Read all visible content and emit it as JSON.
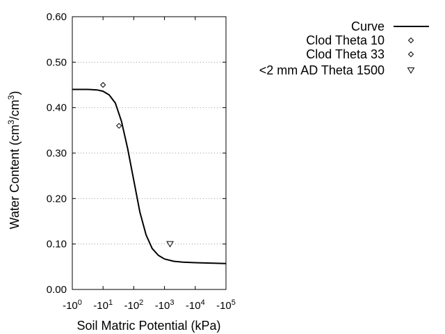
{
  "chart_data": {
    "type": "line",
    "xlabel": "Soil Matric Potential (kPa)",
    "ylabel": {
      "base": "Water Content (cm",
      "sup1": "3",
      "mid": "/cm",
      "sup2": "3",
      "end": ")"
    },
    "x_scale": "log",
    "x_exponents": [
      0,
      1,
      2,
      3,
      4,
      5
    ],
    "x_tick_prefix": "-10",
    "xlim_exponent": [
      0,
      5
    ],
    "ylim": [
      0,
      0.6
    ],
    "y_ticks": [
      "0.00",
      "0.10",
      "0.20",
      "0.30",
      "0.40",
      "0.50",
      "0.60"
    ],
    "grid": "horizontal dotted",
    "legend_position": "top-right",
    "series": [
      {
        "name": "Curve",
        "kind": "line",
        "color": "#000000",
        "points": [
          [
            0.0,
            0.44
          ],
          [
            0.5,
            0.44
          ],
          [
            0.8,
            0.439
          ],
          [
            1.0,
            0.436
          ],
          [
            1.2,
            0.428
          ],
          [
            1.4,
            0.41
          ],
          [
            1.6,
            0.37
          ],
          [
            1.8,
            0.31
          ],
          [
            2.0,
            0.24
          ],
          [
            2.2,
            0.17
          ],
          [
            2.4,
            0.12
          ],
          [
            2.6,
            0.09
          ],
          [
            2.8,
            0.075
          ],
          [
            3.0,
            0.067
          ],
          [
            3.3,
            0.062
          ],
          [
            3.6,
            0.06
          ],
          [
            4.0,
            0.059
          ],
          [
            4.5,
            0.058
          ],
          [
            5.0,
            0.057
          ]
        ]
      },
      {
        "name": "Clod Theta 10",
        "kind": "diamond",
        "points": [
          [
            1.0,
            0.45
          ]
        ]
      },
      {
        "name": "Clod Theta 33",
        "kind": "diamond",
        "points": [
          [
            1.52,
            0.36
          ]
        ]
      },
      {
        "name": "<2 mm AD Theta 1500",
        "kind": "triangle",
        "points": [
          [
            3.18,
            0.1
          ]
        ]
      }
    ]
  }
}
